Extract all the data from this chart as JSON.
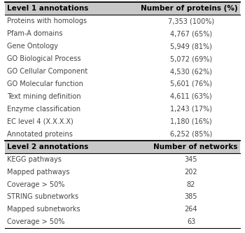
{
  "section1_header": [
    "Level 1 annotations",
    "Number of proteins (%)"
  ],
  "section1_rows": [
    [
      "Proteins with homologs",
      "7,353 (100%)"
    ],
    [
      "Pfam-A domains",
      "4,767 (65%)"
    ],
    [
      "Gene Ontology",
      "5,949 (81%)"
    ],
    [
      "GO Biological Process",
      "5,072 (69%)"
    ],
    [
      "GO Cellular Component",
      "4,530 (62%)"
    ],
    [
      "GO Molecular function",
      "5,601 (76%)"
    ],
    [
      "Text mining definition",
      "4,611 (63%)"
    ],
    [
      "Enzyme classification",
      "1,243 (17%)"
    ],
    [
      "EC level 4 (X.X.X.X)",
      "1,180 (16%)"
    ],
    [
      "Annotated proteins",
      "6,252 (85%)"
    ]
  ],
  "section2_header": [
    "Level 2 annotations",
    "Number of networks"
  ],
  "section2_rows": [
    [
      "KEGG pathways",
      "345"
    ],
    [
      "Mapped pathways",
      "202"
    ],
    [
      "Coverage > 50%",
      "82"
    ],
    [
      "STRING subnetworks",
      "385"
    ],
    [
      "Mapped subnetworks",
      "264"
    ],
    [
      "Coverage > 50%",
      "63"
    ]
  ],
  "header_fontsize": 7.5,
  "row_fontsize": 7.0,
  "bg_color": "#ffffff",
  "header_bg": "#c8c8c8",
  "text_color": "#444444",
  "header_text_color": "#000000"
}
